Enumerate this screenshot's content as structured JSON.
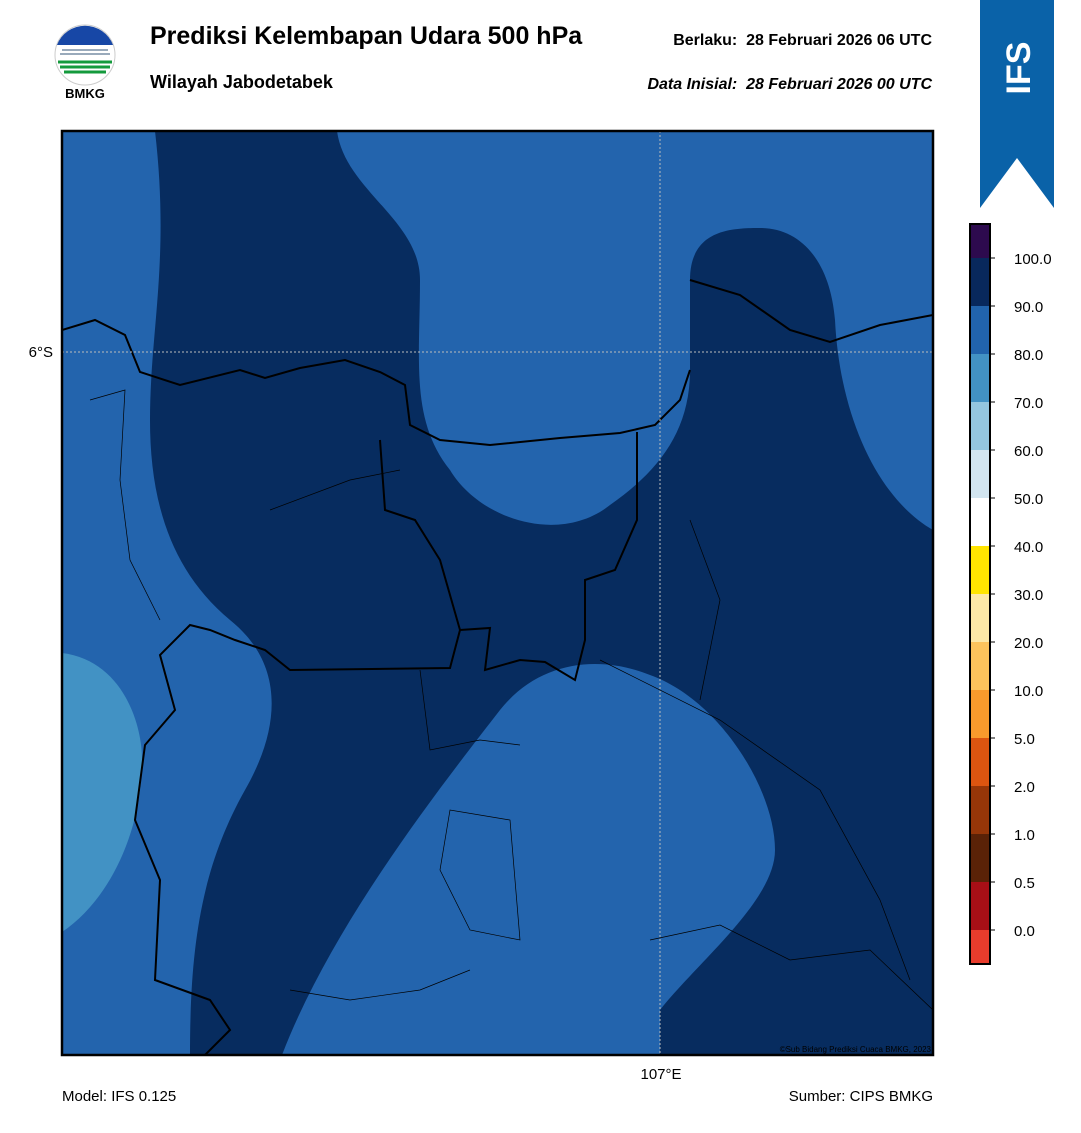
{
  "header": {
    "title": "Prediksi Kelembapan Udara 500 hPa",
    "subtitle": "Wilayah Jabodetabek",
    "valid": "Berlaku:  28 Februari 2026 06 UTC",
    "initial": "Data Inisial:  28 Februari 2026 00 UTC"
  },
  "logo": {
    "text": "BMKG"
  },
  "ribbon": {
    "text": "IFS"
  },
  "map": {
    "lat_label": "6°S",
    "lon_label": "107°E",
    "credit": "©Sub Bidang Prediksi Cuaca BMKG, 2023"
  },
  "colorbar": {
    "labels": [
      "100.0",
      "90.0",
      "80.0",
      "70.0",
      "60.0",
      "50.0",
      "40.0",
      "30.0",
      "20.0",
      "10.0",
      "5.0",
      "2.0",
      "1.0",
      "0.5",
      "0.0"
    ],
    "colors": [
      "#2d0a4e",
      "#08285c",
      "#2163ac",
      "#4292c4",
      "#94c6df",
      "#d2e5f0",
      "#ffffff",
      "#ffe400",
      "#fde8a6",
      "#fdc45c",
      "#f99a2c",
      "#dc5510",
      "#963608",
      "#5a2207",
      "#a70f16",
      "#e73c2c"
    ]
  },
  "footer": {
    "model": "Model: IFS 0.125",
    "source": "Sumber: CIPS BMKG"
  }
}
